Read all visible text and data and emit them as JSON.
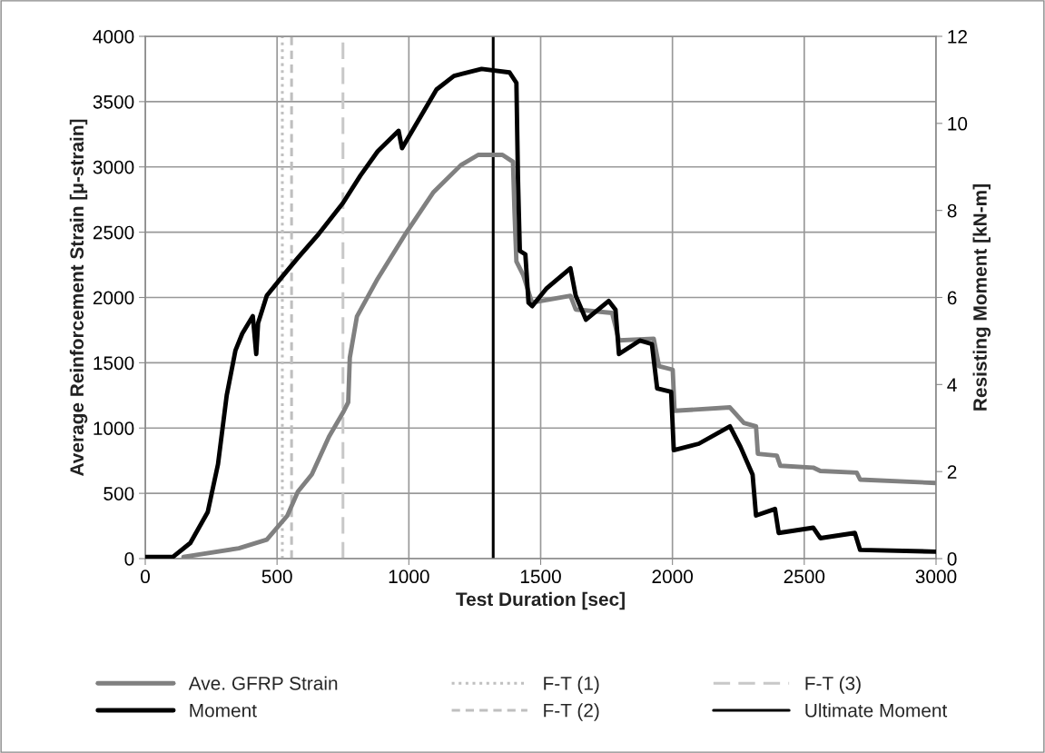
{
  "chart_data": {
    "type": "line",
    "xlabel": "Test Duration [sec]",
    "ylabel": "Average Reinforcement Strain [μ-strain]",
    "y2label": "Resisting Moment [kN-m]",
    "xlim": [
      0,
      3000
    ],
    "xticks": [
      0,
      500,
      1000,
      1500,
      2000,
      2500,
      3000
    ],
    "ylim": [
      0,
      4000
    ],
    "yticks": [
      0,
      500,
      1000,
      1500,
      2000,
      2500,
      3000,
      3500,
      4000
    ],
    "y2lim": [
      0,
      12
    ],
    "y2ticks": [
      0,
      2,
      4,
      6,
      8,
      10,
      12
    ],
    "grid": true,
    "legend": "bottom",
    "series": [
      {
        "name": "Ave. GFRP Strain",
        "color": "#808080",
        "x": [
          145,
          355,
          461,
          539,
          579,
          632,
          697,
          750,
          770,
          776,
          803,
          882,
          987,
          1092,
          1197,
          1263,
          1355,
          1395,
          1401,
          1408,
          1434,
          1467,
          1613,
          1633,
          1771,
          1797,
          1929,
          1949,
          2001,
          2008,
          2218,
          2271,
          2317,
          2324,
          2396,
          2409,
          2534,
          2561,
          2699,
          2712,
          3000
        ],
        "values": [
          13,
          79,
          145,
          329,
          513,
          645,
          934,
          1118,
          1197,
          1539,
          1855,
          2145,
          2487,
          2803,
          3013,
          3092,
          3092,
          3039,
          2645,
          2276,
          2171,
          1961,
          2013,
          1908,
          1882,
          1671,
          1684,
          1474,
          1447,
          1132,
          1158,
          1039,
          1013,
          803,
          789,
          711,
          697,
          671,
          658,
          605,
          579
        ]
      },
      {
        "name": "Moment",
        "color": "#000000",
        "axis": "y2",
        "x": [
          0,
          105,
          171,
          237,
          276,
          309,
          342,
          368,
          408,
          421,
          428,
          461,
          513,
          579,
          658,
          750,
          816,
          882,
          961,
          974,
          1013,
          1105,
          1171,
          1276,
          1382,
          1408,
          1414,
          1421,
          1442,
          1454,
          1468,
          1521,
          1613,
          1633,
          1672,
          1758,
          1784,
          1797,
          1876,
          1922,
          1942,
          1995,
          2005,
          2100,
          2218,
          2258,
          2304,
          2317,
          2389,
          2403,
          2534,
          2561,
          2692,
          2712,
          3000
        ],
        "values": [
          0.04,
          0.04,
          0.36,
          1.07,
          2.17,
          3.75,
          4.78,
          5.17,
          5.57,
          4.7,
          5.41,
          6.04,
          6.43,
          6.91,
          7.46,
          8.17,
          8.8,
          9.36,
          9.83,
          9.43,
          9.83,
          10.78,
          11.09,
          11.25,
          11.17,
          10.93,
          8.72,
          7.07,
          6.99,
          5.88,
          5.8,
          6.2,
          6.67,
          6.04,
          5.49,
          5.92,
          5.72,
          4.7,
          5.01,
          4.93,
          3.91,
          3.83,
          2.49,
          2.64,
          3.04,
          2.57,
          1.93,
          0.99,
          1.14,
          0.59,
          0.71,
          0.47,
          0.59,
          0.2,
          0.16
        ]
      }
    ],
    "ref_lines": [
      {
        "axis": "x",
        "value": 520,
        "label": "F-T (1)",
        "color": "#c0c0c0",
        "line_style": "dotted"
      },
      {
        "axis": "x",
        "value": 555,
        "label": "F-T (2)",
        "color": "#bfbfbf",
        "line_style": "dashed"
      },
      {
        "axis": "x",
        "value": 750,
        "label": "F-T (3)",
        "color": "#c8c8c8",
        "line_style": "longdash"
      },
      {
        "axis": "x",
        "value": 1320,
        "label": "Ultimate Moment",
        "color": "#000000",
        "line_style": "solid"
      }
    ]
  }
}
